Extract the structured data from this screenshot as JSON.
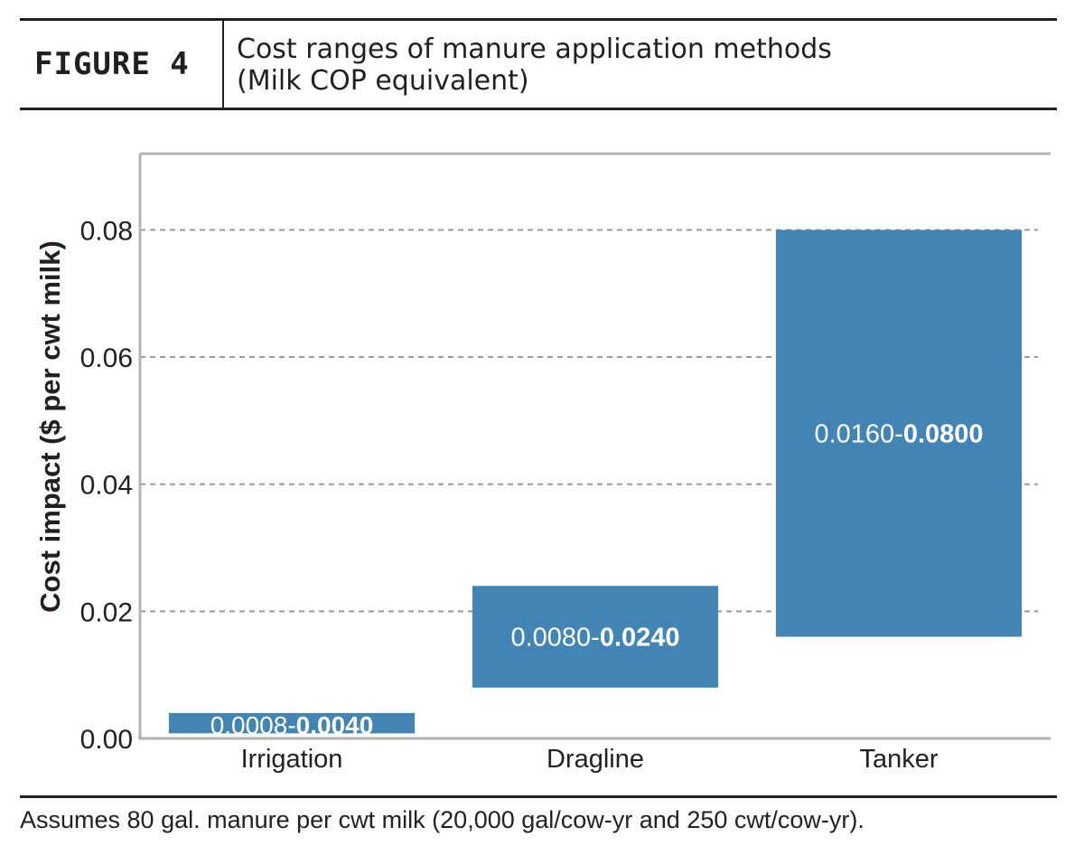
{
  "header": {
    "figure_label": "FIGURE 4",
    "title_line1": "Cost ranges of manure application methods",
    "title_line2": "(Milk COP equivalent)"
  },
  "footnote": "Assumes 80 gal. manure per cwt milk (20,000 gal/cow-yr and 250 cwt/cow-yr).",
  "chart_data": {
    "type": "bar",
    "subtype": "floating-range",
    "categories": [
      "Irrigation",
      "Dragline",
      "Tanker"
    ],
    "ranges": [
      {
        "low": 0.0008,
        "high": 0.004,
        "low_label": "0.0008-",
        "high_label": "0.0040"
      },
      {
        "low": 0.008,
        "high": 0.024,
        "low_label": "0.0080-",
        "high_label": "0.0240"
      },
      {
        "low": 0.016,
        "high": 0.08,
        "low_label": "0.0160-",
        "high_label": "0.0800"
      }
    ],
    "ylabel": "Cost impact ($ per cwt milk)",
    "xlabel": "",
    "ylim": [
      0,
      0.092
    ],
    "yticks": [
      0,
      0.02,
      0.04,
      0.06,
      0.08
    ],
    "ytick_labels": [
      "0.00",
      "0.02",
      "0.04",
      "0.06",
      "0.08"
    ],
    "grid": true,
    "bar_color": "#4285b4",
    "axis_color": "#b3b3b3",
    "grid_color": "#999999"
  }
}
